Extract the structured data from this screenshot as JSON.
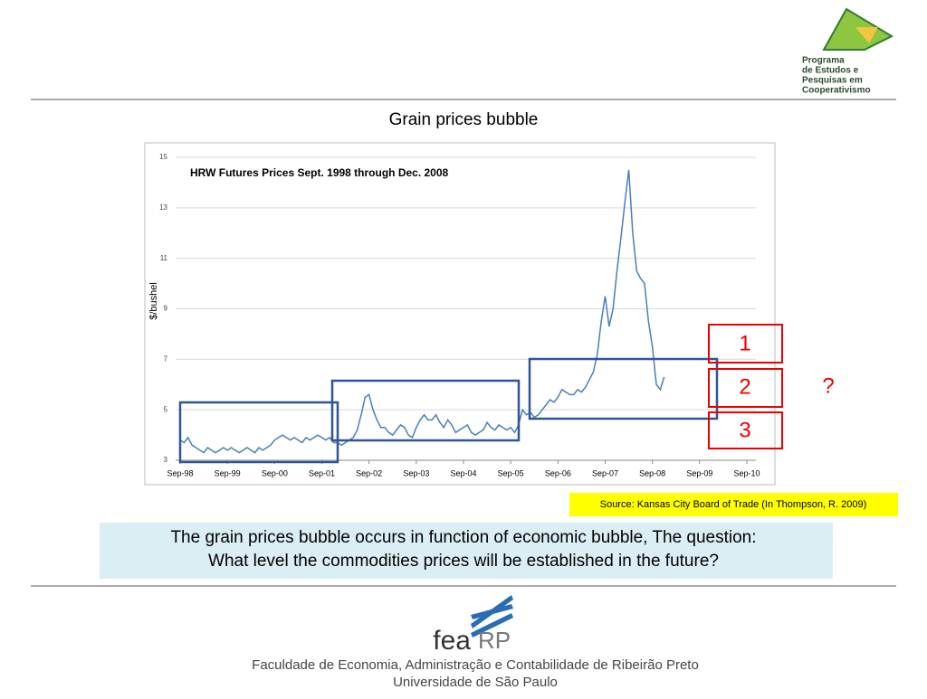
{
  "logo": {
    "lines": [
      "Programa",
      "de Estudos e",
      "Pesquisas em",
      "Cooperativismo"
    ]
  },
  "title": "Grain prices bubble",
  "chart_data": {
    "type": "line",
    "title": "HRW Futures Prices Sept. 1998 through Dec. 2008",
    "y_label": "$/bushel",
    "color": "#4a7ebb",
    "x": [
      "Sep-98",
      "Oct-98",
      "Nov-98",
      "Dec-98",
      "Jan-99",
      "Feb-99",
      "Mar-99",
      "Apr-99",
      "May-99",
      "Jun-99",
      "Jul-99",
      "Aug-99",
      "Sep-99",
      "Oct-99",
      "Nov-99",
      "Dec-99",
      "Jan-00",
      "Feb-00",
      "Mar-00",
      "Apr-00",
      "May-00",
      "Jun-00",
      "Jul-00",
      "Aug-00",
      "Sep-00",
      "Oct-00",
      "Nov-00",
      "Dec-00",
      "Jan-01",
      "Feb-01",
      "Mar-01",
      "Apr-01",
      "May-01",
      "Jun-01",
      "Jul-01",
      "Aug-01",
      "Sep-01",
      "Oct-01",
      "Nov-01",
      "Dec-01",
      "Jan-02",
      "Feb-02",
      "Mar-02",
      "Apr-02",
      "May-02",
      "Jun-02",
      "Jul-02",
      "Aug-02",
      "Sep-02",
      "Oct-02",
      "Nov-02",
      "Dec-02",
      "Jan-03",
      "Feb-03",
      "Mar-03",
      "Apr-03",
      "May-03",
      "Jun-03",
      "Jul-03",
      "Aug-03",
      "Sep-03",
      "Oct-03",
      "Nov-03",
      "Dec-03",
      "Jan-04",
      "Feb-04",
      "Mar-04",
      "Apr-04",
      "May-04",
      "Jun-04",
      "Jul-04",
      "Aug-04",
      "Sep-04",
      "Oct-04",
      "Nov-04",
      "Dec-04",
      "Jan-05",
      "Feb-05",
      "Mar-05",
      "Apr-05",
      "May-05",
      "Jun-05",
      "Jul-05",
      "Aug-05",
      "Sep-05",
      "Oct-05",
      "Nov-05",
      "Dec-05",
      "Jan-06",
      "Feb-06",
      "Mar-06",
      "Apr-06",
      "May-06",
      "Jun-06",
      "Jul-06",
      "Aug-06",
      "Sep-06",
      "Oct-06",
      "Nov-06",
      "Dec-06",
      "Jan-07",
      "Feb-07",
      "Mar-07",
      "Apr-07",
      "May-07",
      "Jun-07",
      "Jul-07",
      "Aug-07",
      "Sep-07",
      "Oct-07",
      "Nov-07",
      "Dec-07",
      "Jan-08",
      "Feb-08",
      "Mar-08",
      "Apr-08",
      "May-08",
      "Jun-08",
      "Jul-08",
      "Aug-08",
      "Sep-08",
      "Oct-08",
      "Nov-08",
      "Dec-08"
    ],
    "values": [
      3.8,
      3.7,
      3.9,
      3.6,
      3.5,
      3.4,
      3.3,
      3.5,
      3.4,
      3.3,
      3.4,
      3.5,
      3.4,
      3.5,
      3.4,
      3.3,
      3.4,
      3.5,
      3.4,
      3.3,
      3.5,
      3.4,
      3.5,
      3.6,
      3.8,
      3.9,
      4.0,
      3.9,
      3.8,
      3.9,
      3.8,
      3.7,
      3.9,
      3.8,
      3.9,
      4.0,
      3.9,
      3.8,
      3.9,
      3.7,
      3.7,
      3.6,
      3.7,
      3.8,
      3.9,
      4.2,
      4.8,
      5.5,
      5.6,
      5.0,
      4.6,
      4.3,
      4.3,
      4.1,
      4.0,
      4.2,
      4.4,
      4.3,
      4.0,
      3.9,
      4.3,
      4.6,
      4.8,
      4.6,
      4.6,
      4.8,
      4.5,
      4.3,
      4.6,
      4.4,
      4.1,
      4.2,
      4.3,
      4.4,
      4.1,
      4.0,
      4.1,
      4.2,
      4.5,
      4.3,
      4.2,
      4.4,
      4.3,
      4.2,
      4.3,
      4.1,
      4.4,
      5.0,
      4.8,
      4.9,
      4.7,
      4.8,
      5.0,
      5.2,
      5.4,
      5.3,
      5.5,
      5.8,
      5.7,
      5.6,
      5.6,
      5.8,
      5.7,
      5.9,
      6.2,
      6.5,
      7.2,
      8.5,
      9.5,
      8.3,
      9.0,
      10.5,
      11.8,
      13.2,
      14.5,
      12.0,
      10.5,
      10.2,
      10.0,
      8.5,
      7.5,
      6.0,
      5.8,
      6.3
    ],
    "ylim": [
      3,
      15
    ],
    "yticks": [
      3,
      5,
      7,
      9,
      11,
      13,
      15
    ],
    "xticks": [
      "Sep-98",
      "Sep-99",
      "Sep-00",
      "Sep-01",
      "Sep-02",
      "Sep-03",
      "Sep-04",
      "Sep-05",
      "Sep-06",
      "Sep-07",
      "Sep-08",
      "Sep-09",
      "Sep-10"
    ],
    "grid": true
  },
  "levels": [
    "1",
    "2",
    "3"
  ],
  "question": "?",
  "source": "Source: Kansas City Board of Trade (In Thompson, R. 2009)",
  "caption": [
    "The grain prices bubble occurs in function of economic bubble, The question:",
    "What level the commodities prices will be established in the future?"
  ],
  "footer": {
    "logo": "fea",
    "logo_suffix": "RP",
    "lines": [
      "Faculdade de Economia, Administração e Contabilidade de Ribeirão Preto",
      "Universidade de São Paulo"
    ]
  }
}
